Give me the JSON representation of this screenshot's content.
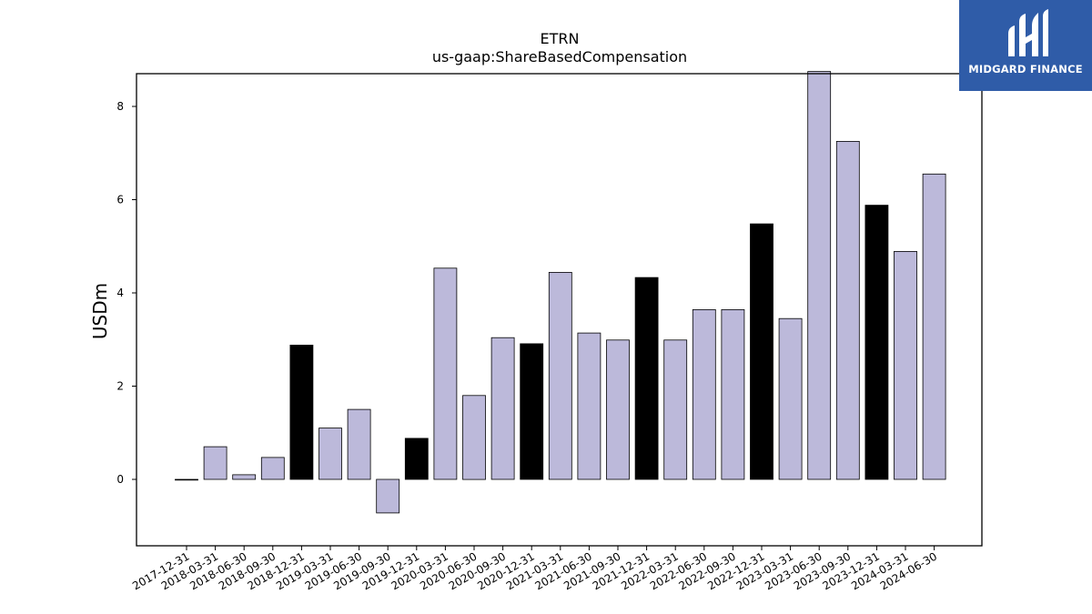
{
  "logo": {
    "text": "MIDGARD FINANCE"
  },
  "chart_data": {
    "type": "bar",
    "title": "ETRN",
    "subtitle": "us-gaap:ShareBasedCompensation",
    "xlabel": "",
    "ylabel": "USDm",
    "ylim": [
      -1.45,
      8.7
    ],
    "yticks": [
      0,
      2,
      4,
      6,
      8
    ],
    "grid": false,
    "colors": {
      "quarter": "#bcb9da",
      "year_end": "#000000",
      "edge": "#000000"
    },
    "categories": [
      "2017-12-31",
      "2018-03-31",
      "2018-06-30",
      "2018-09-30",
      "2018-12-31",
      "2019-03-31",
      "2019-06-30",
      "2019-09-30",
      "2019-12-31",
      "2020-03-31",
      "2020-06-30",
      "2020-09-30",
      "2020-12-31",
      "2021-03-31",
      "2021-06-30",
      "2021-09-30",
      "2021-12-31",
      "2022-03-31",
      "2022-06-30",
      "2022-09-30",
      "2022-12-31",
      "2023-03-31",
      "2023-06-30",
      "2023-09-30",
      "2023-12-31",
      "2024-03-31",
      "2024-06-30"
    ],
    "values": [
      0.0,
      0.7,
      0.1,
      0.47,
      2.88,
      1.1,
      1.5,
      -0.72,
      0.88,
      4.53,
      1.8,
      3.04,
      2.91,
      4.44,
      3.14,
      2.99,
      4.33,
      2.99,
      3.64,
      3.64,
      5.48,
      3.45,
      8.75,
      7.25,
      5.88,
      4.89,
      6.55
    ],
    "highlight": [
      false,
      false,
      false,
      false,
      true,
      false,
      false,
      false,
      true,
      false,
      false,
      false,
      true,
      false,
      false,
      false,
      true,
      false,
      false,
      false,
      true,
      false,
      false,
      false,
      true,
      false,
      false
    ]
  }
}
